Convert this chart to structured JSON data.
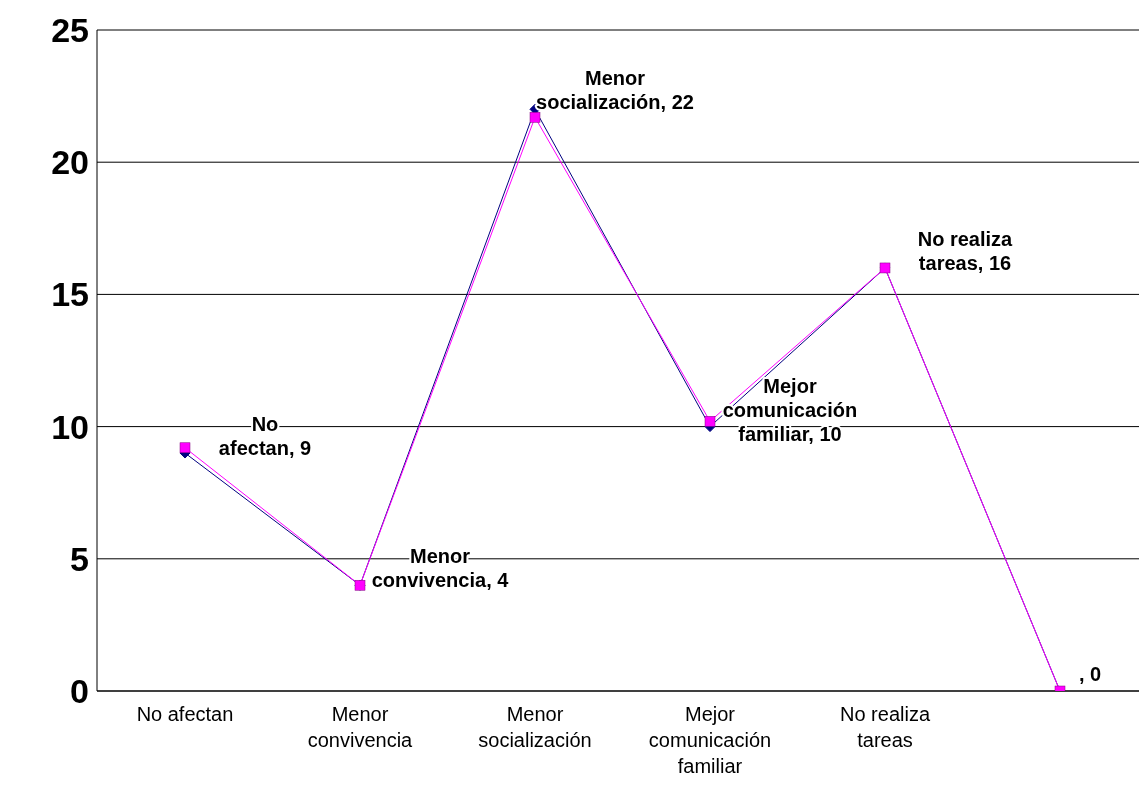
{
  "chart_data": {
    "type": "line",
    "categories": [
      "No afectan",
      "Menor convivencia",
      "Menor socialización",
      "Mejor comunicación familiar",
      "No realiza tareas",
      null
    ],
    "series": [
      {
        "color": "#000080",
        "marker": "diamond",
        "values": [
          9,
          4,
          22,
          10,
          16,
          0
        ],
        "value_labels": [
          "No\nafectan, 9",
          "Menor\nconvivencia, 4",
          "Menor\nsocialización, 22",
          "Mejor\ncomunicación\nfamiliar, 10",
          "No realiza\ntareas, 16",
          ", 0"
        ]
      },
      {
        "color": "#ff00ff",
        "marker": "square",
        "values": [
          9.2,
          4,
          21.7,
          10.2,
          16,
          0
        ]
      }
    ],
    "ylim": [
      0,
      25
    ],
    "yticks": [
      0,
      5,
      10,
      15,
      20,
      25
    ],
    "grid": "y"
  }
}
